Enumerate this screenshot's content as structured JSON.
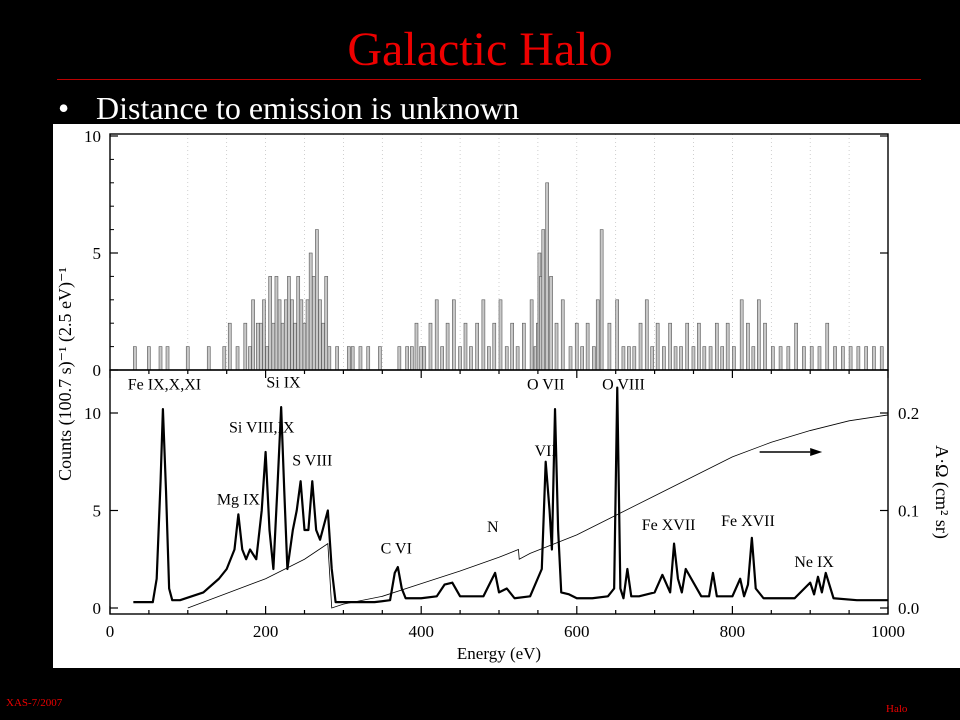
{
  "slide": {
    "title": "Galactic Halo",
    "bullet": "Distance to emission is unknown",
    "bullet_marker": "•",
    "footer_left": "XAS-7/2007",
    "footer_right": "Halo",
    "title_color": "#e00000",
    "background": "#000000"
  },
  "chart_data": [
    {
      "type": "bar",
      "panel": "top",
      "description_axis": "Counts (100.7 s)^-1 (2.5 eV)^-1",
      "ylabel": "Counts (100.7 s)⁻¹ (2.5 eV)⁻¹",
      "xlim": [
        0,
        1000
      ],
      "ylim": [
        0,
        10
      ],
      "yticks": [
        "0",
        "5",
        "10"
      ],
      "xbins": [
        30,
        48,
        63,
        72,
        98,
        125,
        145,
        152,
        162,
        172,
        178,
        182,
        188,
        192,
        196,
        200,
        204,
        208,
        212,
        216,
        220,
        224,
        228,
        232,
        236,
        240,
        244,
        248,
        252,
        256,
        260,
        264,
        268,
        272,
        276,
        280,
        290,
        305,
        310,
        320,
        330,
        345,
        370,
        380,
        386,
        392,
        398,
        402,
        410,
        418,
        425,
        432,
        440,
        448,
        455,
        462,
        470,
        478,
        485,
        492,
        500,
        508,
        515,
        522,
        530,
        540,
        545,
        548,
        550,
        552,
        555,
        560,
        565,
        572,
        580,
        590,
        598,
        605,
        612,
        620,
        625,
        630,
        640,
        650,
        658,
        665,
        672,
        680,
        688,
        695,
        702,
        710,
        718,
        725,
        732,
        740,
        748,
        755,
        762,
        770,
        778,
        785,
        792,
        800,
        810,
        818,
        825,
        832,
        840,
        850,
        860,
        870,
        880,
        890,
        900,
        910,
        920,
        930,
        940,
        950,
        960,
        970,
        980,
        990
      ],
      "values": [
        1,
        1,
        1,
        1,
        1,
        1,
        1,
        2,
        1,
        2,
        1,
        3,
        2,
        2,
        3,
        1,
        4,
        2,
        4,
        3,
        2,
        3,
        4,
        3,
        2,
        4,
        3,
        2,
        3,
        5,
        4,
        6,
        3,
        2,
        4,
        1,
        1,
        1,
        1,
        1,
        1,
        1,
        1,
        1,
        1,
        2,
        1,
        1,
        2,
        3,
        1,
        2,
        3,
        1,
        2,
        1,
        2,
        3,
        1,
        2,
        3,
        1,
        2,
        1,
        2,
        3,
        1,
        2,
        5,
        4,
        6,
        8,
        4,
        2,
        3,
        1,
        2,
        1,
        2,
        1,
        3,
        6,
        2,
        3,
        1,
        1,
        1,
        2,
        3,
        1,
        2,
        1,
        2,
        1,
        1,
        2,
        1,
        2,
        1,
        1,
        2,
        1,
        2,
        1,
        3,
        2,
        1,
        3,
        2,
        1,
        1,
        1,
        2,
        1,
        1,
        1,
        2,
        1,
        1,
        1,
        1,
        1,
        1,
        1
      ]
    },
    {
      "type": "line",
      "panel": "bottom",
      "xlabel": "Energy (eV)",
      "ylabel": "Counts (100.7 s)⁻¹ (2.5 eV)⁻¹",
      "y2label": "A·Ω (cm² sr)",
      "xlim": [
        0,
        1000
      ],
      "ylim": [
        0,
        12
      ],
      "y2lim": [
        0,
        0.24
      ],
      "xticks": [
        "0",
        "200",
        "400",
        "600",
        "800",
        "1000"
      ],
      "yticks": [
        "0",
        "5",
        "10"
      ],
      "y2ticks": [
        "0.0",
        "0.1",
        "0.2"
      ],
      "series": [
        {
          "x": [
            30,
            55,
            60,
            65,
            68,
            72,
            76,
            80,
            90,
            120,
            140,
            150,
            160,
            165,
            170,
            175,
            180,
            188,
            195,
            200,
            205,
            210,
            215,
            220,
            224,
            228,
            235,
            240,
            245,
            250,
            255,
            260,
            265,
            270,
            280,
            285,
            290,
            300,
            320,
            340,
            360,
            366,
            370,
            375,
            380,
            400,
            420,
            430,
            440,
            450,
            460,
            480,
            495,
            500,
            510,
            520,
            540,
            555,
            560,
            565,
            568,
            572,
            576,
            580,
            590,
            600,
            620,
            640,
            648,
            652,
            656,
            660,
            665,
            670,
            680,
            700,
            710,
            720,
            725,
            730,
            735,
            740,
            760,
            770,
            775,
            780,
            790,
            800,
            810,
            815,
            820,
            825,
            830,
            840,
            860,
            880,
            900,
            905,
            910,
            915,
            920,
            930,
            960,
            1000
          ],
          "values": [
            0.3,
            0.3,
            1.5,
            6.5,
            10.2,
            6,
            1,
            0.4,
            0.4,
            0.8,
            1.5,
            2,
            3,
            4.8,
            3,
            2.5,
            3,
            2.5,
            5,
            8,
            4,
            2,
            6,
            10.3,
            6,
            2,
            4,
            5,
            6.5,
            4,
            4,
            6.5,
            4,
            3.5,
            5,
            2,
            0.3,
            0.3,
            0.3,
            0.3,
            0.4,
            1.8,
            2.1,
            1,
            0.5,
            0.5,
            0.6,
            1.2,
            1.3,
            0.6,
            0.6,
            0.6,
            1.8,
            0.8,
            1,
            0.5,
            0.6,
            2,
            7.5,
            5,
            3,
            10.2,
            4,
            0.8,
            0.7,
            0.5,
            0.5,
            0.6,
            1,
            11.3,
            1,
            0.5,
            2,
            0.6,
            0.6,
            0.8,
            1.7,
            0.8,
            3.3,
            1.5,
            0.8,
            2,
            0.6,
            0.6,
            1.8,
            0.6,
            0.6,
            0.6,
            1.5,
            0.6,
            1.2,
            3.6,
            1,
            0.5,
            0.5,
            0.5,
            1.3,
            0.7,
            1.6,
            0.8,
            1.8,
            0.5,
            0.4,
            0.4
          ]
        },
        {
          "axis": "right",
          "x": [
            100,
            150,
            200,
            250,
            280,
            285,
            300,
            350,
            400,
            450,
            500,
            525,
            526,
            540,
            600,
            650,
            700,
            750,
            800,
            850,
            900,
            950,
            1000
          ],
          "values": [
            0.0,
            0.015,
            0.03,
            0.05,
            0.066,
            0.0,
            0.004,
            0.012,
            0.025,
            0.038,
            0.052,
            0.06,
            0.05,
            0.056,
            0.075,
            0.095,
            0.115,
            0.135,
            0.155,
            0.17,
            0.182,
            0.192,
            0.198
          ]
        }
      ],
      "annotations": [
        {
          "text": "Fe IX,X,XI",
          "x": 70,
          "y": 11.2
        },
        {
          "text": "Si IX",
          "x": 223,
          "y": 11.3
        },
        {
          "text": "Si VIII,IX",
          "x": 195,
          "y": 9
        },
        {
          "text": "Mg IX",
          "x": 165,
          "y": 5.3
        },
        {
          "text": "S VIII",
          "x": 260,
          "y": 7.3
        },
        {
          "text": "C VI",
          "x": 368,
          "y": 2.8
        },
        {
          "text": "N",
          "x": 492,
          "y": 3.9
        },
        {
          "text": "O VII",
          "x": 560,
          "y": 11.2
        },
        {
          "text": "VII",
          "x": 560,
          "y": 7.8
        },
        {
          "text": "O VIII",
          "x": 660,
          "y": 11.2
        },
        {
          "text": "Fe XVII",
          "x": 718,
          "y": 4
        },
        {
          "text": "Fe XVII",
          "x": 820,
          "y": 4.2
        },
        {
          "text": "Ne IX",
          "x": 905,
          "y": 2.1
        }
      ],
      "arrow_label": "→"
    }
  ]
}
